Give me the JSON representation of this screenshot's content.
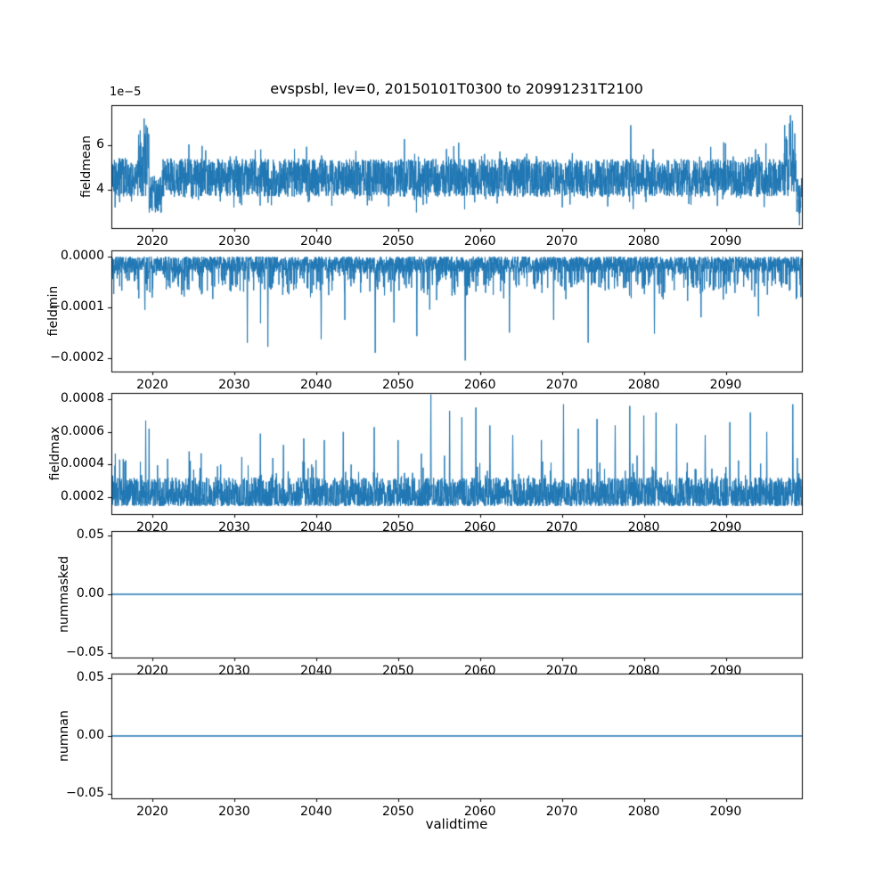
{
  "figure": {
    "title": "evspsbl, lev=0, 20150101T0300 to 20991231T2100",
    "xlabel": "validtime",
    "x": {
      "range": [
        2015.0,
        2099.3
      ],
      "ticks": [
        2020,
        2030,
        2040,
        2050,
        2060,
        2070,
        2080,
        2090
      ]
    },
    "colors": {
      "line": "#1f77b4",
      "axes": "#000000",
      "background": "#ffffff",
      "text": "#000000"
    }
  },
  "chart_data": [
    {
      "type": "line",
      "name": "fieldmean",
      "ylabel": "fieldmean",
      "offset_label": "1e−5",
      "unit_scale": 1e-05,
      "ylim": [
        2.3,
        7.8
      ],
      "yticks": [
        {
          "value": 4,
          "label": "4"
        },
        {
          "value": 6,
          "label": "6"
        }
      ],
      "series": {
        "kind": "noisy-band",
        "center": 4.55,
        "half_amp": 0.85,
        "tail_prob": 0.1,
        "tail_extra": 0.9,
        "windows": [
          {
            "x0": 2018.3,
            "x1": 2019.6,
            "boost_top": 2.1
          },
          {
            "x0": 2019.6,
            "x1": 2021.2,
            "shift": -0.75
          },
          {
            "x0": 2097.1,
            "x1": 2098.6,
            "boost_top": 2.3
          },
          {
            "x0": 2098.6,
            "x1": 2099.3,
            "shift": -0.85
          }
        ],
        "spikes": [
          {
            "x": 2019.0,
            "y": 7.2
          },
          {
            "x": 2019.25,
            "y": 6.9
          },
          {
            "x": 2078.4,
            "y": 6.9
          },
          {
            "x": 2097.9,
            "y": 7.35
          },
          {
            "x": 2098.15,
            "y": 7.1
          }
        ]
      }
    },
    {
      "type": "line",
      "name": "fieldmin",
      "ylabel": "fieldmin",
      "offset_label": null,
      "unit_scale": 1,
      "ylim": [
        -0.000227,
        1.23e-05
      ],
      "yticks": [
        {
          "value": 0,
          "label": "0.0000"
        },
        {
          "value": -0.0001,
          "label": "−0.0001"
        },
        {
          "value": -0.0002,
          "label": "−0.0002"
        }
      ],
      "series": {
        "kind": "spiky-down",
        "base_amp": 3.2e-05,
        "mid_prob": 0.18,
        "mid_amp": 5.5e-05,
        "deep_prob": 0.012,
        "deep_amp": 7e-05,
        "spikes": [
          {
            "x": 2019.1,
            "y": -0.000105
          },
          {
            "x": 2031.6,
            "y": -0.00017
          },
          {
            "x": 2034.1,
            "y": -0.000178
          },
          {
            "x": 2040.6,
            "y": -0.000163
          },
          {
            "x": 2043.5,
            "y": -0.000125
          },
          {
            "x": 2047.2,
            "y": -0.00019
          },
          {
            "x": 2049.5,
            "y": -0.00013
          },
          {
            "x": 2052.3,
            "y": -0.000157
          },
          {
            "x": 2058.2,
            "y": -0.000205
          },
          {
            "x": 2063.6,
            "y": -0.00015
          },
          {
            "x": 2069.0,
            "y": -0.000125
          },
          {
            "x": 2073.2,
            "y": -0.00017
          },
          {
            "x": 2081.3,
            "y": -0.000152
          },
          {
            "x": 2087.0,
            "y": -0.00012
          },
          {
            "x": 2094.0,
            "y": -0.000118
          }
        ]
      }
    },
    {
      "type": "line",
      "name": "fieldmax",
      "ylabel": "fieldmax",
      "offset_label": null,
      "unit_scale": 1,
      "ylim": [
        9.5e-05,
        0.00084
      ],
      "yticks": [
        {
          "value": 0.0002,
          "label": "0.0002"
        },
        {
          "value": 0.0004,
          "label": "0.0004"
        },
        {
          "value": 0.0006,
          "label": "0.0006"
        },
        {
          "value": 0.0008,
          "label": "0.0008"
        }
      ],
      "series": {
        "kind": "spiky-up",
        "base": 0.000145,
        "band_amp": 0.000175,
        "mid_prob": 0.06,
        "mid_amp": 0.00016,
        "big_prob": 0.006,
        "big_amp": 0.00022,
        "spikes": [
          {
            "x": 2016.0,
            "y": 0.00043
          },
          {
            "x": 2019.2,
            "y": 0.00067
          },
          {
            "x": 2019.6,
            "y": 0.00062
          },
          {
            "x": 2024.5,
            "y": 0.00048
          },
          {
            "x": 2033.2,
            "y": 0.00059
          },
          {
            "x": 2036.0,
            "y": 0.00052
          },
          {
            "x": 2038.5,
            "y": 0.00056
          },
          {
            "x": 2041.0,
            "y": 0.00055
          },
          {
            "x": 2043.3,
            "y": 0.0006
          },
          {
            "x": 2047.1,
            "y": 0.00063
          },
          {
            "x": 2050.0,
            "y": 0.00055
          },
          {
            "x": 2054.0,
            "y": 0.00083
          },
          {
            "x": 2056.3,
            "y": 0.00073
          },
          {
            "x": 2057.8,
            "y": 0.00069
          },
          {
            "x": 2059.5,
            "y": 0.00075
          },
          {
            "x": 2061.2,
            "y": 0.00064
          },
          {
            "x": 2064.0,
            "y": 0.00058
          },
          {
            "x": 2067.5,
            "y": 0.00055
          },
          {
            "x": 2070.2,
            "y": 0.00077
          },
          {
            "x": 2072.0,
            "y": 0.00062
          },
          {
            "x": 2074.3,
            "y": 0.00068
          },
          {
            "x": 2076.5,
            "y": 0.00064
          },
          {
            "x": 2078.3,
            "y": 0.00076
          },
          {
            "x": 2080.0,
            "y": 0.0007
          },
          {
            "x": 2081.5,
            "y": 0.00072
          },
          {
            "x": 2084.0,
            "y": 0.00065
          },
          {
            "x": 2087.5,
            "y": 0.00058
          },
          {
            "x": 2090.5,
            "y": 0.00066
          },
          {
            "x": 2093.0,
            "y": 0.00072
          },
          {
            "x": 2095.0,
            "y": 0.0006
          },
          {
            "x": 2098.2,
            "y": 0.00077
          }
        ]
      }
    },
    {
      "type": "line",
      "name": "nummasked",
      "ylabel": "nummasked",
      "offset_label": null,
      "unit_scale": 1,
      "ylim": [
        -0.0535,
        0.0535
      ],
      "yticks": [
        {
          "value": 0.05,
          "label": "0.05"
        },
        {
          "value": 0,
          "label": "0.00"
        },
        {
          "value": -0.05,
          "label": "−0.05"
        }
      ],
      "series": {
        "kind": "flat",
        "value": 0
      }
    },
    {
      "type": "line",
      "name": "numnan",
      "ylabel": "numnan",
      "offset_label": null,
      "unit_scale": 1,
      "ylim": [
        -0.0535,
        0.0535
      ],
      "yticks": [
        {
          "value": 0.05,
          "label": "0.05"
        },
        {
          "value": 0,
          "label": "0.00"
        },
        {
          "value": -0.05,
          "label": "−0.05"
        }
      ],
      "series": {
        "kind": "flat",
        "value": 0
      }
    }
  ]
}
